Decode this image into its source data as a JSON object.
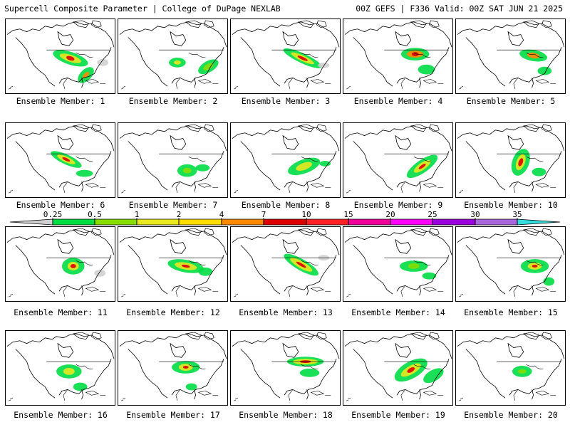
{
  "header": {
    "left_title": "Supercell Composite Parameter | College of DuPage NEXLAB",
    "right_title": "00Z GEFS | F336 Valid: 00Z SAT JUN 21 2025"
  },
  "colorbar": {
    "ticks": [
      "0.25",
      "0.5",
      "1",
      "2",
      "4",
      "7",
      "10",
      "15",
      "20",
      "25",
      "30",
      "35"
    ],
    "colors": [
      "#d0d0d0",
      "#00dd44",
      "#88dd00",
      "#e8e820",
      "#ffdd00",
      "#ff8800",
      "#dd0000",
      "#ff2222",
      "#ee0099",
      "#ff00ff",
      "#9900dd",
      "#aa66dd",
      "#33dddd"
    ]
  },
  "members": [
    {
      "label": "Ensemble Member: 1"
    },
    {
      "label": "Ensemble Member: 2"
    },
    {
      "label": "Ensemble Member: 3"
    },
    {
      "label": "Ensemble Member: 4"
    },
    {
      "label": "Ensemble Member: 5"
    },
    {
      "label": "Ensemble Member: 6"
    },
    {
      "label": "Ensemble Member: 7"
    },
    {
      "label": "Ensemble Member: 8"
    },
    {
      "label": "Ensemble Member: 9"
    },
    {
      "label": "Ensemble Member: 10"
    },
    {
      "label": "Ensemble Member: 11"
    },
    {
      "label": "Ensemble Member: 12"
    },
    {
      "label": "Ensemble Member: 13"
    },
    {
      "label": "Ensemble Member: 14"
    },
    {
      "label": "Ensemble Member: 15"
    },
    {
      "label": "Ensemble Member: 16"
    },
    {
      "label": "Ensemble Member: 17"
    },
    {
      "label": "Ensemble Member: 18"
    },
    {
      "label": "Ensemble Member: 19"
    },
    {
      "label": "Ensemble Member: 20"
    }
  ]
}
